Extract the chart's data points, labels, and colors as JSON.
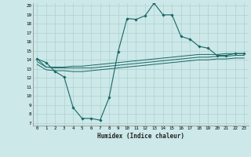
{
  "background_color": "#cce8e8",
  "grid_color": "#b0d0d0",
  "line_color": "#1a6666",
  "x_label": "Humidex (Indice chaleur)",
  "ylim": [
    7,
    20
  ],
  "xlim": [
    -0.5,
    23.5
  ],
  "yticks": [
    7,
    8,
    9,
    10,
    11,
    12,
    13,
    14,
    15,
    16,
    17,
    18,
    19,
    20
  ],
  "xticks": [
    0,
    1,
    2,
    3,
    4,
    5,
    6,
    7,
    8,
    9,
    10,
    11,
    12,
    13,
    14,
    15,
    16,
    17,
    18,
    19,
    20,
    21,
    22,
    23
  ],
  "line1_x": [
    0,
    1,
    2,
    3,
    4,
    5,
    6,
    7,
    8,
    9,
    10,
    11,
    12,
    13,
    14,
    15,
    16,
    17,
    18,
    19,
    20,
    21,
    22,
    23
  ],
  "line1_y": [
    14.1,
    13.7,
    12.7,
    12.1,
    8.7,
    7.5,
    7.5,
    7.3,
    9.8,
    14.9,
    18.6,
    18.5,
    18.9,
    20.3,
    19.0,
    19.0,
    16.6,
    16.3,
    15.5,
    15.3,
    14.5,
    14.5,
    14.7,
    14.7
  ],
  "line2_x": [
    0,
    1,
    2,
    3,
    4,
    5,
    6,
    7,
    8,
    9,
    10,
    11,
    12,
    13,
    14,
    15,
    16,
    17,
    18,
    19,
    20,
    21,
    22,
    23
  ],
  "line2_y": [
    14.1,
    13.2,
    13.2,
    13.2,
    13.3,
    13.3,
    13.4,
    13.5,
    13.6,
    13.7,
    13.8,
    13.9,
    14.0,
    14.1,
    14.2,
    14.3,
    14.4,
    14.5,
    14.6,
    14.6,
    14.6,
    14.7,
    14.7,
    14.7
  ],
  "line3_x": [
    0,
    1,
    2,
    3,
    4,
    5,
    6,
    7,
    8,
    9,
    10,
    11,
    12,
    13,
    14,
    15,
    16,
    17,
    18,
    19,
    20,
    21,
    22,
    23
  ],
  "line3_y": [
    13.8,
    13.2,
    13.1,
    13.1,
    13.1,
    13.1,
    13.1,
    13.2,
    13.3,
    13.4,
    13.5,
    13.6,
    13.7,
    13.8,
    13.9,
    14.0,
    14.1,
    14.2,
    14.3,
    14.3,
    14.4,
    14.4,
    14.5,
    14.5
  ],
  "line4_x": [
    0,
    1,
    2,
    3,
    4,
    5,
    6,
    7,
    8,
    9,
    10,
    11,
    12,
    13,
    14,
    15,
    16,
    17,
    18,
    19,
    20,
    21,
    22,
    23
  ],
  "line4_y": [
    13.5,
    12.9,
    12.8,
    12.8,
    12.7,
    12.7,
    12.8,
    12.9,
    13.0,
    13.1,
    13.2,
    13.3,
    13.4,
    13.5,
    13.6,
    13.7,
    13.8,
    13.9,
    14.0,
    14.0,
    14.1,
    14.1,
    14.2,
    14.2
  ]
}
